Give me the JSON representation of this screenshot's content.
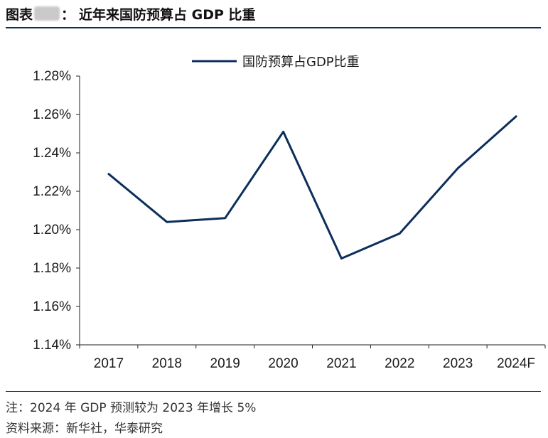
{
  "header": {
    "prefix": "图表",
    "suffix": "：",
    "title": "近年来国防预算占 GDP 比重"
  },
  "notes": {
    "note": "注：2024 年 GDP 预测较为 2023 年增长 5%",
    "source": "资料来源：新华社，华泰研究"
  },
  "chart_data": {
    "type": "line",
    "categories": [
      "2017",
      "2018",
      "2019",
      "2020",
      "2021",
      "2022",
      "2023",
      "2024F"
    ],
    "series": [
      {
        "name": "国防预算占GDP比重",
        "values": [
          1.229,
          1.204,
          1.206,
          1.251,
          1.185,
          1.198,
          1.232,
          1.259
        ],
        "color": "#0c2e5b"
      }
    ],
    "yticks": [
      "1.14%",
      "1.16%",
      "1.18%",
      "1.20%",
      "1.22%",
      "1.24%",
      "1.26%",
      "1.28%"
    ],
    "ylim": [
      1.14,
      1.28
    ],
    "legend_position": "top-center",
    "grid": false
  }
}
